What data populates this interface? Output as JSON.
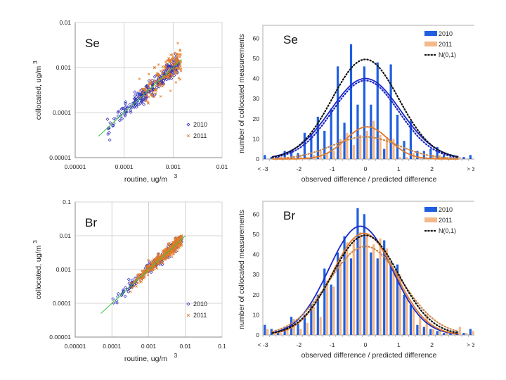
{
  "chart_data": [
    {
      "id": "se-scatter",
      "type": "scatter",
      "element_label": "Se",
      "xlabel": "routine,  ug/m",
      "xlabel_sup": "3",
      "ylabel": "collocated,  ug/m",
      "ylabel_sup": "3",
      "scale": "log",
      "xlim": [
        1e-05,
        0.01
      ],
      "ylim": [
        1e-05,
        0.01
      ],
      "xticks": [
        "0.00001",
        "0.0001",
        "0.001",
        "0.01"
      ],
      "yticks": [
        "0.00001",
        "0.0001",
        "0.001",
        "0.01"
      ],
      "xtick_values": [
        1e-05,
        0.0001,
        0.001,
        0.01
      ],
      "ytick_values": [
        1e-05,
        0.0001,
        0.001,
        0.01
      ],
      "grid": true,
      "legend": {
        "placement": "bottom-right",
        "entries": [
          {
            "label": "2010",
            "marker": "diamond",
            "color": "#2b2bb8"
          },
          {
            "label": "2011",
            "marker": "x",
            "color": "#e07b2a"
          }
        ]
      },
      "reference_line": {
        "from": 3e-05,
        "to": 0.0015,
        "color": "#3cc43c"
      },
      "series": [
        {
          "name": "2010",
          "center_range": [
            4e-05,
            0.0013
          ],
          "n": 260,
          "log_spread": 0.09,
          "color": "#2b2bb8"
        },
        {
          "name": "2011",
          "center_range": [
            0.0002,
            0.0015
          ],
          "n": 170,
          "log_spread": 0.16,
          "color": "#e07b2a"
        }
      ]
    },
    {
      "id": "se-hist",
      "type": "bar",
      "element_label": "Se",
      "xlabel": "observed difference / predicted difference",
      "ylabel": "number of collocated measurements",
      "ylim": [
        0,
        65
      ],
      "yticks": [
        0,
        10,
        20,
        30,
        40,
        50,
        60
      ],
      "xtick_labels": [
        "< -3",
        "-2",
        "-1",
        "0",
        "1",
        "2",
        "> 3"
      ],
      "xtick_positions": [
        -3,
        -2,
        -1,
        0,
        1,
        2,
        3
      ],
      "categories_note": "<-3, bins of width 0.2 centered -2.9..2.9, >3",
      "legend": {
        "placement": "top-right",
        "entries": [
          {
            "label": "2010",
            "color": "#1f5fe0",
            "kind": "bar"
          },
          {
            "label": "2011",
            "color": "#f5b889",
            "kind": "bar"
          },
          {
            "label": "N(0,1)",
            "color": "#111111",
            "kind": "dotted-line"
          }
        ]
      },
      "series": [
        {
          "name": "2010",
          "color": "#1f5fe0",
          "values": [
            2,
            1,
            1,
            4,
            4,
            3,
            13,
            12,
            21,
            14,
            25,
            46,
            18,
            57,
            27,
            46,
            27,
            48,
            5,
            47,
            22,
            9,
            19,
            4,
            4,
            5,
            6,
            2,
            1,
            1,
            1,
            2
          ]
        },
        {
          "name": "2011",
          "color": "#f5b889",
          "values": [
            0,
            0,
            1,
            1,
            1,
            2,
            1,
            2,
            4,
            3,
            4,
            10,
            13,
            7,
            12,
            14,
            19,
            12,
            11,
            10,
            1,
            1,
            3,
            1,
            1,
            2,
            2,
            1,
            1,
            1,
            0,
            0
          ]
        }
      ],
      "curves": [
        {
          "name": "2010 fit",
          "style": "solid",
          "color": "#1a28c8",
          "mean": 0.0,
          "sd": 1.05,
          "peak": 40
        },
        {
          "name": "2010 N(0,1) scaled",
          "style": "dotted",
          "color": "#1a28c8",
          "mean": 0.0,
          "sd": 1.0,
          "peak": 39
        },
        {
          "name": "2011 fit",
          "style": "solid",
          "color": "#e07b2a",
          "mean": 0.05,
          "sd": 0.65,
          "peak": 16
        },
        {
          "name": "2011 N(0,1) scaled",
          "style": "dotted",
          "color": "#c9884d",
          "mean": 0.0,
          "sd": 1.0,
          "peak": 11
        },
        {
          "name": "N(0,1)",
          "style": "dotted",
          "color": "#111111",
          "mean": 0.0,
          "sd": 1.0,
          "peak": 49.5
        }
      ]
    },
    {
      "id": "br-scatter",
      "type": "scatter",
      "element_label": "Br",
      "xlabel": "routine,  ug/m",
      "xlabel_sup": "3",
      "ylabel": "collocated,  ug/m",
      "ylabel_sup": "3",
      "scale": "log",
      "xlim": [
        1e-05,
        0.1
      ],
      "ylim": [
        1e-05,
        0.1
      ],
      "xticks": [
        "0.00001",
        "0.0001",
        "0.001",
        "0.01",
        "0.1"
      ],
      "yticks": [
        "0.00001",
        "0.0001",
        "0.001",
        "0.01",
        "0.1"
      ],
      "xtick_values": [
        1e-05,
        0.0001,
        0.001,
        0.01,
        0.1
      ],
      "ytick_values": [
        1e-05,
        0.0001,
        0.001,
        0.01,
        0.1
      ],
      "grid": true,
      "legend": {
        "placement": "bottom-right",
        "entries": [
          {
            "label": "2010",
            "marker": "diamond",
            "color": "#2b2bb8"
          },
          {
            "label": "2011",
            "marker": "x",
            "color": "#e07b2a"
          }
        ]
      },
      "reference_line": {
        "from": 5e-05,
        "to": 0.01,
        "color": "#3cc43c"
      },
      "series": [
        {
          "name": "2010",
          "center_range": [
            9e-05,
            0.008
          ],
          "n": 200,
          "log_spread": 0.08,
          "color": "#2b2bb8"
        },
        {
          "name": "2011",
          "center_range": [
            0.0003,
            0.008
          ],
          "n": 420,
          "log_spread": 0.09,
          "color": "#e07b2a"
        }
      ]
    },
    {
      "id": "br-hist",
      "type": "bar",
      "element_label": "Br",
      "xlabel": "observed difference / predicted difference",
      "ylabel": "number of collocated measurements",
      "ylim": [
        0,
        65
      ],
      "yticks": [
        0,
        10,
        20,
        30,
        40,
        50,
        60
      ],
      "xtick_labels": [
        "< -3",
        "-2",
        "-1",
        "0",
        "1",
        "2",
        "> 3"
      ],
      "xtick_positions": [
        -3,
        -2,
        -1,
        0,
        1,
        2,
        3
      ],
      "categories_note": "<-3, bins of width 0.2 centered -2.9..2.9, >3",
      "legend": {
        "placement": "top-right",
        "entries": [
          {
            "label": "2010",
            "color": "#1f5fe0",
            "kind": "bar"
          },
          {
            "label": "2011",
            "color": "#f5b889",
            "kind": "bar"
          },
          {
            "label": "N(0,1)",
            "color": "#111111",
            "kind": "dotted-line"
          }
        ]
      },
      "series": [
        {
          "name": "2010",
          "color": "#1f5fe0",
          "values": [
            5,
            3,
            1,
            4,
            9,
            6,
            10,
            15,
            20,
            33,
            25,
            41,
            49,
            38,
            63,
            60,
            41,
            38,
            47,
            36,
            35,
            20,
            15,
            5,
            4,
            3,
            2,
            1,
            1,
            2,
            1,
            3
          ]
        },
        {
          "name": "2011",
          "color": "#f5b889",
          "values": [
            3,
            1,
            1,
            3,
            8,
            3,
            6,
            14,
            9,
            27,
            24,
            37,
            46,
            48,
            51,
            50,
            45,
            48,
            43,
            31,
            30,
            19,
            13,
            9,
            10,
            3,
            2,
            1,
            1,
            4,
            1,
            2
          ]
        }
      ],
      "curves": [
        {
          "name": "2010 fit",
          "style": "solid",
          "color": "#1a28c8",
          "mean": -0.15,
          "sd": 0.95,
          "peak": 54
        },
        {
          "name": "2011 fit",
          "style": "solid",
          "color": "#e07b2a",
          "mean": -0.05,
          "sd": 0.95,
          "peak": 50.5
        },
        {
          "name": "2011 N(0,1) scaled",
          "style": "dotted",
          "color": "#c9884d",
          "mean": 0.0,
          "sd": 1.1,
          "peak": 44
        },
        {
          "name": "N(0,1)",
          "style": "dotted",
          "color": "#111111",
          "mean": 0.0,
          "sd": 1.0,
          "peak": 49.5
        }
      ]
    }
  ]
}
